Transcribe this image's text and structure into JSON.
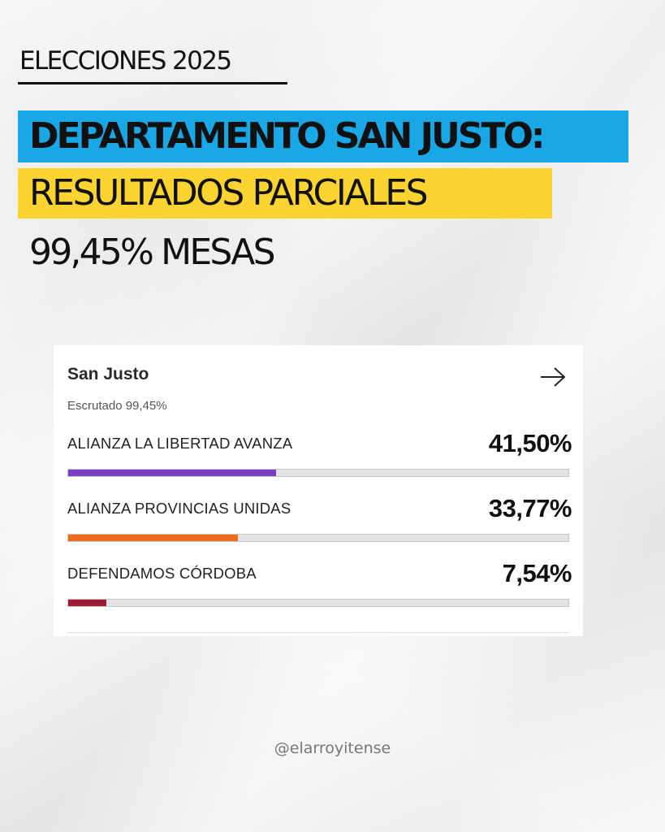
{
  "header": {
    "kicker": "ELECCIONES 2025",
    "title_line1": "DEPARTAMENTO SAN JUSTO:",
    "title_line2": "RESULTADOS PARCIALES",
    "title_line3": "99,45% MESAS"
  },
  "colors": {
    "highlight_blue": "#1aa7e6",
    "highlight_yellow": "#fbd431"
  },
  "card": {
    "title": "San Justo",
    "arrow_icon": "arrow-right-icon",
    "subtitle": "Escrutado 99,45%"
  },
  "chart_data": {
    "type": "bar",
    "orientation": "horizontal",
    "categories": [
      "ALIANZA LA LIBERTAD AVANZA",
      "ALIANZA PROVINCIAS UNIDAS",
      "DEFENDAMOS CÓRDOBA"
    ],
    "values": [
      41.5,
      33.77,
      7.54
    ],
    "value_labels": [
      "41,50%",
      "33,77%",
      "7,54%"
    ],
    "colors": [
      "#7b3fc4",
      "#f26a1b",
      "#9b1b30"
    ],
    "xlim": [
      0,
      100
    ],
    "grid": false
  },
  "footer": {
    "handle": "@elarroyitense"
  }
}
